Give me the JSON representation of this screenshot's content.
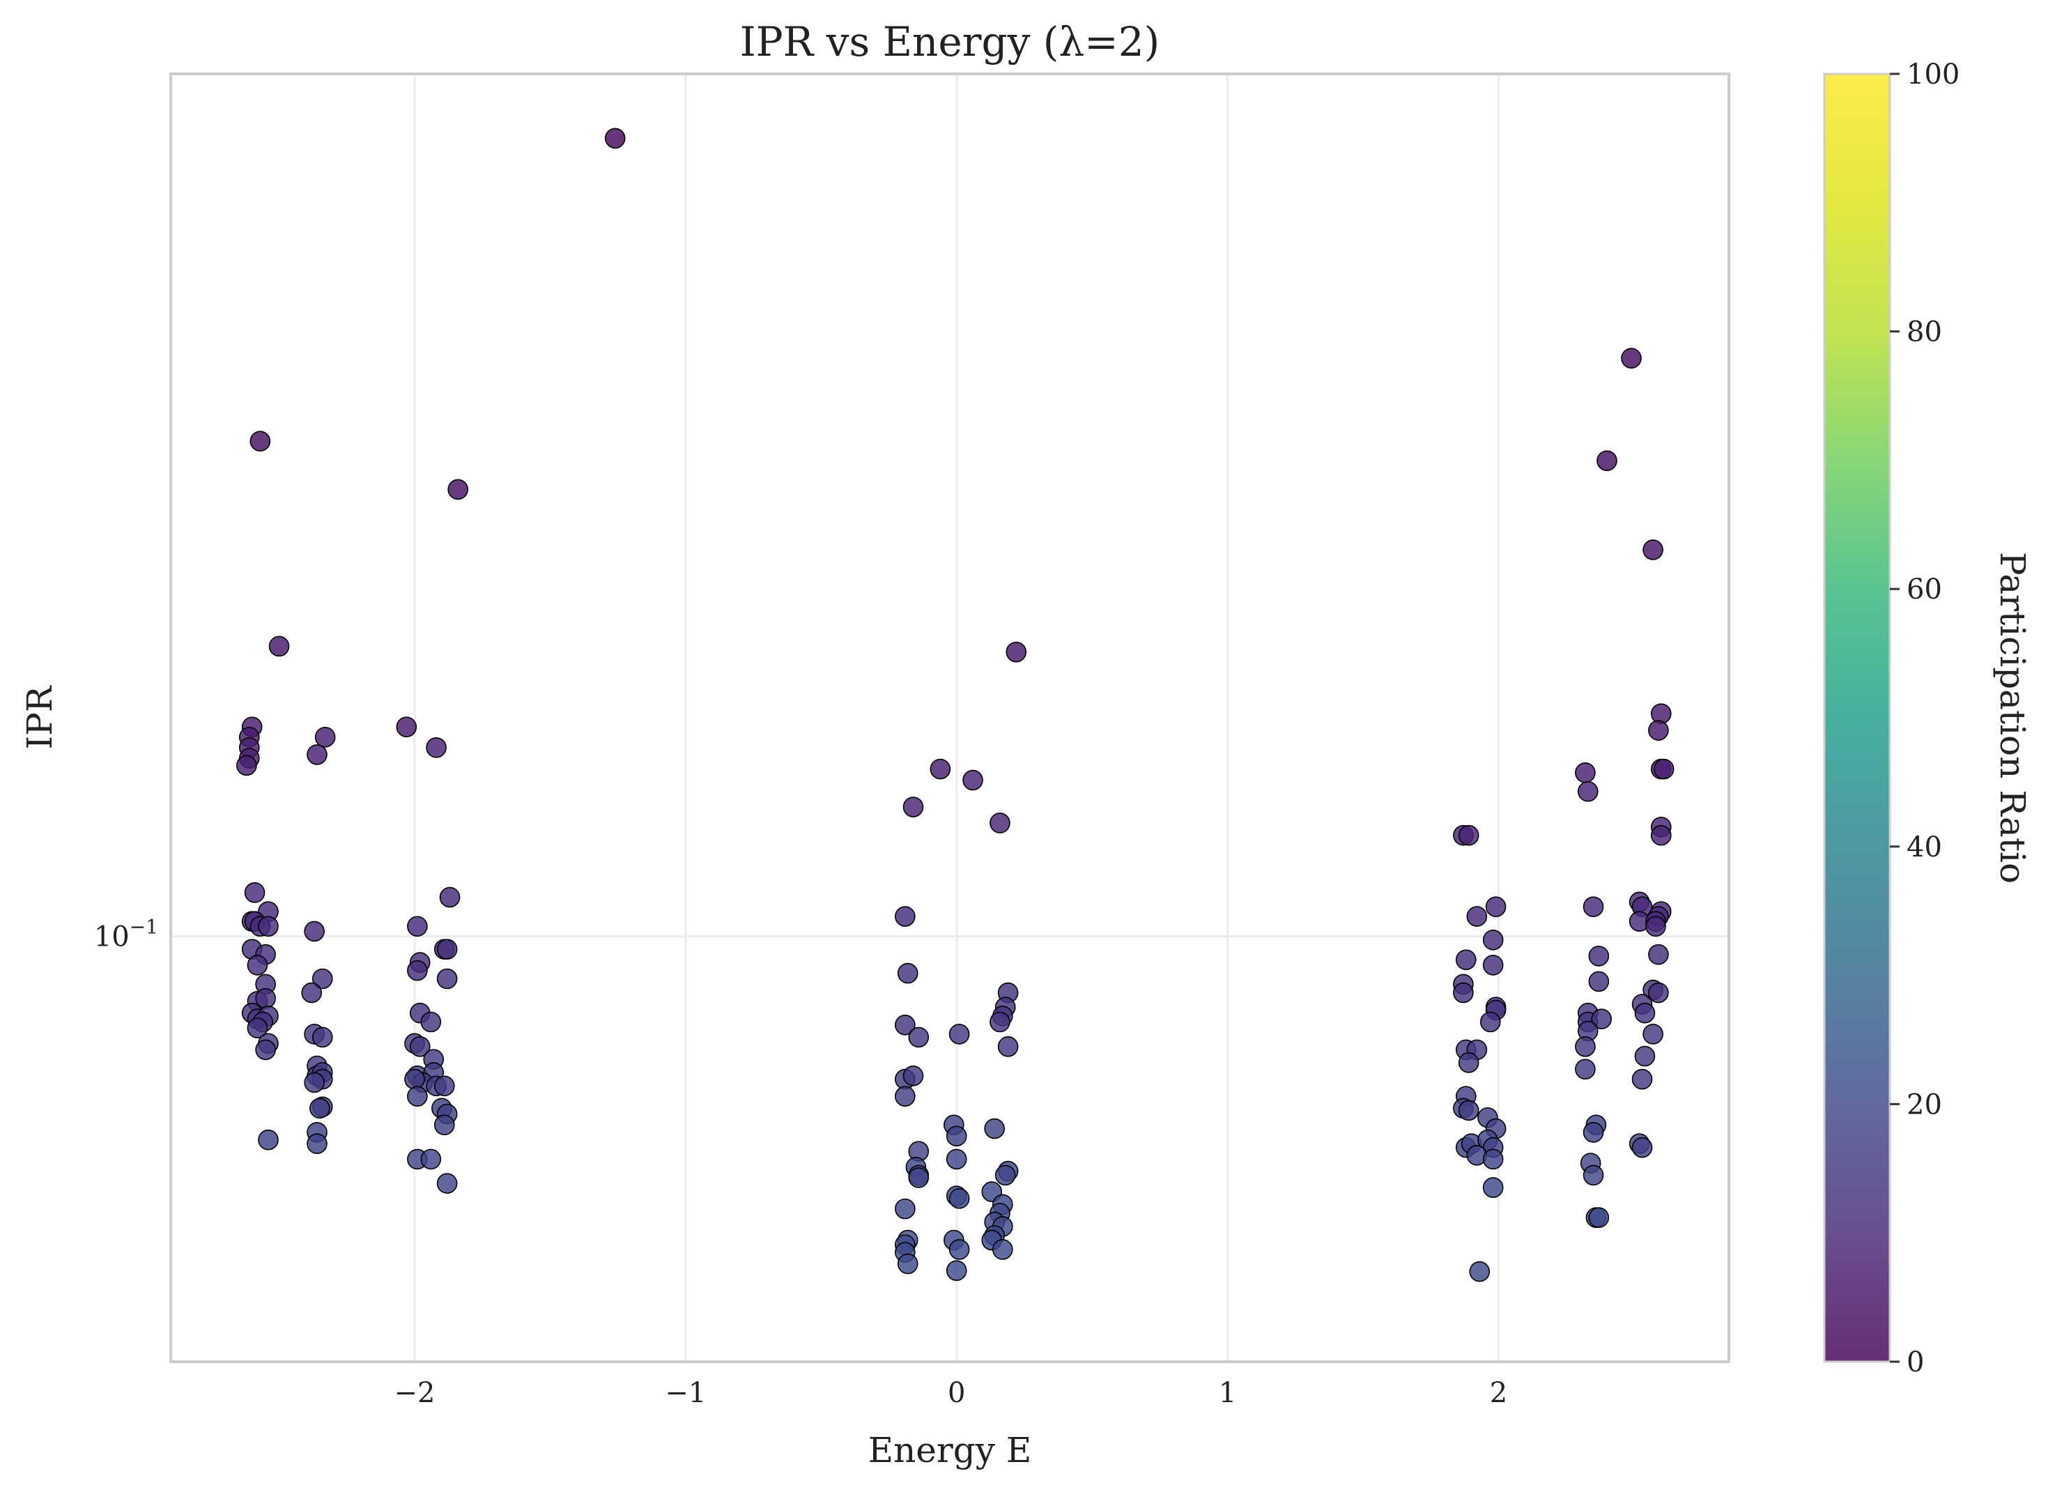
{
  "chart_data": {
    "type": "scatter",
    "title": "IPR vs Energy (λ=2)",
    "xlabel": "Energy E",
    "ylabel": "IPR",
    "xlim": [
      -2.9,
      2.85
    ],
    "ylim": [
      0.0433,
      0.546
    ],
    "yscale": "log",
    "x_ticks": [
      {
        "value": -2,
        "label": "−2"
      },
      {
        "value": -1,
        "label": "−1"
      },
      {
        "value": 0,
        "label": "0"
      },
      {
        "value": 1,
        "label": "1"
      },
      {
        "value": 2,
        "label": "2"
      }
    ],
    "y_ticks": [
      {
        "value": 0.1,
        "label": "10",
        "exponent": "−1"
      }
    ],
    "grid": true,
    "colorbar": {
      "label": "Participation Ratio",
      "colormap": "viridis",
      "range": [
        0,
        100
      ],
      "ticks": [
        {
          "value": 0,
          "label": "0"
        },
        {
          "value": 20,
          "label": "20"
        },
        {
          "value": 40,
          "label": "40"
        },
        {
          "value": 60,
          "label": "60"
        },
        {
          "value": 80,
          "label": "80"
        },
        {
          "value": 100,
          "label": "100"
        }
      ]
    },
    "points": [
      {
        "x": -1.26,
        "y": 0.481,
        "c": 2
      },
      {
        "x": 2.49,
        "y": 0.312,
        "c": 3
      },
      {
        "x": -2.57,
        "y": 0.265,
        "c": 4
      },
      {
        "x": 2.4,
        "y": 0.255,
        "c": 4
      },
      {
        "x": -1.84,
        "y": 0.241,
        "c": 4
      },
      {
        "x": 2.57,
        "y": 0.214,
        "c": 5
      },
      {
        "x": -2.5,
        "y": 0.177,
        "c": 6
      },
      {
        "x": 0.22,
        "y": 0.175,
        "c": 6
      },
      {
        "x": 2.6,
        "y": 0.155,
        "c": 7
      },
      {
        "x": -2.6,
        "y": 0.151,
        "c": 7
      },
      {
        "x": -2.61,
        "y": 0.148,
        "c": 7
      },
      {
        "x": -2.03,
        "y": 0.151,
        "c": 7
      },
      {
        "x": 2.59,
        "y": 0.15,
        "c": 7
      },
      {
        "x": -2.33,
        "y": 0.148,
        "c": 8
      },
      {
        "x": -2.61,
        "y": 0.145,
        "c": 8
      },
      {
        "x": -1.92,
        "y": 0.145,
        "c": 8
      },
      {
        "x": -2.36,
        "y": 0.143,
        "c": 8
      },
      {
        "x": -2.61,
        "y": 0.142,
        "c": 8
      },
      {
        "x": -2.62,
        "y": 0.14,
        "c": 8
      },
      {
        "x": -0.06,
        "y": 0.139,
        "c": 8
      },
      {
        "x": 2.6,
        "y": 0.139,
        "c": 8
      },
      {
        "x": 2.61,
        "y": 0.139,
        "c": 8
      },
      {
        "x": 2.32,
        "y": 0.138,
        "c": 8
      },
      {
        "x": 0.06,
        "y": 0.136,
        "c": 9
      },
      {
        "x": 2.33,
        "y": 0.133,
        "c": 9
      },
      {
        "x": -0.16,
        "y": 0.129,
        "c": 9
      },
      {
        "x": 0.16,
        "y": 0.125,
        "c": 9
      },
      {
        "x": 2.6,
        "y": 0.124,
        "c": 9
      },
      {
        "x": 1.87,
        "y": 0.122,
        "c": 9
      },
      {
        "x": 1.89,
        "y": 0.122,
        "c": 9
      },
      {
        "x": 2.6,
        "y": 0.122,
        "c": 9
      },
      {
        "x": -2.59,
        "y": 0.109,
        "c": 11
      },
      {
        "x": -1.87,
        "y": 0.108,
        "c": 11
      },
      {
        "x": 2.52,
        "y": 0.107,
        "c": 11
      },
      {
        "x": 2.53,
        "y": 0.106,
        "c": 11
      },
      {
        "x": 1.99,
        "y": 0.106,
        "c": 11
      },
      {
        "x": 2.35,
        "y": 0.106,
        "c": 11
      },
      {
        "x": -2.54,
        "y": 0.105,
        "c": 11
      },
      {
        "x": 2.6,
        "y": 0.105,
        "c": 11
      },
      {
        "x": -0.19,
        "y": 0.104,
        "c": 11
      },
      {
        "x": 1.92,
        "y": 0.104,
        "c": 11
      },
      {
        "x": 2.59,
        "y": 0.104,
        "c": 11
      },
      {
        "x": -2.6,
        "y": 0.103,
        "c": 11
      },
      {
        "x": -2.59,
        "y": 0.103,
        "c": 11
      },
      {
        "x": 2.52,
        "y": 0.103,
        "c": 11
      },
      {
        "x": 2.58,
        "y": 0.103,
        "c": 11
      },
      {
        "x": 2.58,
        "y": 0.102,
        "c": 11
      },
      {
        "x": -1.99,
        "y": 0.102,
        "c": 11
      },
      {
        "x": -2.57,
        "y": 0.102,
        "c": 11
      },
      {
        "x": -2.54,
        "y": 0.102,
        "c": 11
      },
      {
        "x": -2.37,
        "y": 0.101,
        "c": 11
      },
      {
        "x": 1.98,
        "y": 0.0993,
        "c": 12
      },
      {
        "x": -2.6,
        "y": 0.0975,
        "c": 12
      },
      {
        "x": -1.89,
        "y": 0.0975,
        "c": 12
      },
      {
        "x": -1.88,
        "y": 0.0975,
        "c": 12
      },
      {
        "x": -2.55,
        "y": 0.0965,
        "c": 12
      },
      {
        "x": 2.59,
        "y": 0.0965,
        "c": 12
      },
      {
        "x": 2.37,
        "y": 0.0962,
        "c": 12
      },
      {
        "x": 1.88,
        "y": 0.0955,
        "c": 12
      },
      {
        "x": -1.98,
        "y": 0.095,
        "c": 12
      },
      {
        "x": -2.58,
        "y": 0.0945,
        "c": 12
      },
      {
        "x": -1.99,
        "y": 0.0935,
        "c": 12
      },
      {
        "x": 1.98,
        "y": 0.0945,
        "c": 12
      },
      {
        "x": -0.18,
        "y": 0.093,
        "c": 13
      },
      {
        "x": -2.34,
        "y": 0.092,
        "c": 13
      },
      {
        "x": -2.55,
        "y": 0.091,
        "c": 13
      },
      {
        "x": -1.88,
        "y": 0.092,
        "c": 13
      },
      {
        "x": 1.87,
        "y": 0.091,
        "c": 13
      },
      {
        "x": 2.37,
        "y": 0.0915,
        "c": 13
      },
      {
        "x": -2.38,
        "y": 0.0895,
        "c": 13
      },
      {
        "x": 0.19,
        "y": 0.0895,
        "c": 13
      },
      {
        "x": 1.87,
        "y": 0.0895,
        "c": 13
      },
      {
        "x": 2.57,
        "y": 0.09,
        "c": 13
      },
      {
        "x": 2.59,
        "y": 0.0895,
        "c": 13
      },
      {
        "x": -2.58,
        "y": 0.088,
        "c": 13
      },
      {
        "x": -2.55,
        "y": 0.0885,
        "c": 13
      },
      {
        "x": 0.18,
        "y": 0.087,
        "c": 13
      },
      {
        "x": 1.99,
        "y": 0.087,
        "c": 13
      },
      {
        "x": 2.53,
        "y": 0.0875,
        "c": 13
      },
      {
        "x": -2.6,
        "y": 0.086,
        "c": 14
      },
      {
        "x": -1.98,
        "y": 0.086,
        "c": 14
      },
      {
        "x": 0.17,
        "y": 0.0855,
        "c": 14
      },
      {
        "x": 1.99,
        "y": 0.0865,
        "c": 14
      },
      {
        "x": 2.33,
        "y": 0.086,
        "c": 14
      },
      {
        "x": 2.54,
        "y": 0.086,
        "c": 14
      },
      {
        "x": -2.58,
        "y": 0.085,
        "c": 14
      },
      {
        "x": -2.54,
        "y": 0.0855,
        "c": 14
      },
      {
        "x": -2.56,
        "y": 0.0845,
        "c": 14
      },
      {
        "x": -1.94,
        "y": 0.0845,
        "c": 14
      },
      {
        "x": 0.16,
        "y": 0.0845,
        "c": 14
      },
      {
        "x": 1.97,
        "y": 0.0845,
        "c": 14
      },
      {
        "x": 2.33,
        "y": 0.0845,
        "c": 14
      },
      {
        "x": 2.38,
        "y": 0.085,
        "c": 14
      },
      {
        "x": -0.19,
        "y": 0.084,
        "c": 14
      },
      {
        "x": -2.58,
        "y": 0.0835,
        "c": 14
      },
      {
        "x": 0.01,
        "y": 0.0825,
        "c": 15
      },
      {
        "x": -0.14,
        "y": 0.082,
        "c": 15
      },
      {
        "x": -2.37,
        "y": 0.0825,
        "c": 15
      },
      {
        "x": -2.34,
        "y": 0.082,
        "c": 15
      },
      {
        "x": 2.33,
        "y": 0.083,
        "c": 15
      },
      {
        "x": 2.57,
        "y": 0.0825,
        "c": 15
      },
      {
        "x": -2.0,
        "y": 0.081,
        "c": 15
      },
      {
        "x": -1.98,
        "y": 0.0805,
        "c": 15
      },
      {
        "x": -2.54,
        "y": 0.081,
        "c": 15
      },
      {
        "x": -2.55,
        "y": 0.08,
        "c": 15
      },
      {
        "x": 0.19,
        "y": 0.0805,
        "c": 15
      },
      {
        "x": 1.88,
        "y": 0.08,
        "c": 15
      },
      {
        "x": 1.92,
        "y": 0.08,
        "c": 15
      },
      {
        "x": 2.32,
        "y": 0.0805,
        "c": 15
      },
      {
        "x": 2.54,
        "y": 0.079,
        "c": 15
      },
      {
        "x": -1.93,
        "y": 0.0785,
        "c": 16
      },
      {
        "x": -2.36,
        "y": 0.0775,
        "c": 16
      },
      {
        "x": 1.89,
        "y": 0.078,
        "c": 16
      },
      {
        "x": 2.32,
        "y": 0.077,
        "c": 16
      },
      {
        "x": -2.36,
        "y": 0.076,
        "c": 16
      },
      {
        "x": -2.34,
        "y": 0.0765,
        "c": 16
      },
      {
        "x": -1.99,
        "y": 0.076,
        "c": 16
      },
      {
        "x": -1.93,
        "y": 0.0765,
        "c": 16
      },
      {
        "x": -2.34,
        "y": 0.0755,
        "c": 16
      },
      {
        "x": -2.37,
        "y": 0.075,
        "c": 16
      },
      {
        "x": -1.97,
        "y": 0.075,
        "c": 16
      },
      {
        "x": -1.92,
        "y": 0.0745,
        "c": 16
      },
      {
        "x": -1.89,
        "y": 0.0745,
        "c": 16
      },
      {
        "x": -2.0,
        "y": 0.0755,
        "c": 16
      },
      {
        "x": -0.19,
        "y": 0.0755,
        "c": 16
      },
      {
        "x": -0.16,
        "y": 0.076,
        "c": 16
      },
      {
        "x": 2.53,
        "y": 0.0755,
        "c": 16
      },
      {
        "x": -1.99,
        "y": 0.073,
        "c": 17
      },
      {
        "x": 1.88,
        "y": 0.073,
        "c": 17
      },
      {
        "x": -0.19,
        "y": 0.073,
        "c": 17
      },
      {
        "x": -2.34,
        "y": 0.0715,
        "c": 17
      },
      {
        "x": -2.35,
        "y": 0.0713,
        "c": 17
      },
      {
        "x": -1.9,
        "y": 0.0713,
        "c": 17
      },
      {
        "x": -1.88,
        "y": 0.0705,
        "c": 17
      },
      {
        "x": 1.87,
        "y": 0.0713,
        "c": 17
      },
      {
        "x": 1.89,
        "y": 0.071,
        "c": 17
      },
      {
        "x": 1.96,
        "y": 0.07,
        "c": 17
      },
      {
        "x": -0.01,
        "y": 0.069,
        "c": 18
      },
      {
        "x": 0.14,
        "y": 0.0685,
        "c": 18
      },
      {
        "x": -2.36,
        "y": 0.068,
        "c": 18
      },
      {
        "x": -1.89,
        "y": 0.069,
        "c": 18
      },
      {
        "x": 0.0,
        "y": 0.0675,
        "c": 18
      },
      {
        "x": 1.99,
        "y": 0.0685,
        "c": 18
      },
      {
        "x": 2.36,
        "y": 0.069,
        "c": 18
      },
      {
        "x": 2.35,
        "y": 0.068,
        "c": 18
      },
      {
        "x": -2.54,
        "y": 0.067,
        "c": 18
      },
      {
        "x": -2.36,
        "y": 0.0665,
        "c": 18
      },
      {
        "x": 1.88,
        "y": 0.066,
        "c": 18
      },
      {
        "x": 1.9,
        "y": 0.0665,
        "c": 18
      },
      {
        "x": 1.96,
        "y": 0.067,
        "c": 18
      },
      {
        "x": 1.98,
        "y": 0.066,
        "c": 18
      },
      {
        "x": 2.52,
        "y": 0.0665,
        "c": 18
      },
      {
        "x": 2.53,
        "y": 0.066,
        "c": 18
      },
      {
        "x": -0.14,
        "y": 0.0655,
        "c": 19
      },
      {
        "x": 0.0,
        "y": 0.0645,
        "c": 19
      },
      {
        "x": -1.99,
        "y": 0.0645,
        "c": 19
      },
      {
        "x": -1.94,
        "y": 0.0645,
        "c": 19
      },
      {
        "x": 1.92,
        "y": 0.065,
        "c": 19
      },
      {
        "x": 1.98,
        "y": 0.0645,
        "c": 19
      },
      {
        "x": -0.15,
        "y": 0.0635,
        "c": 19
      },
      {
        "x": 0.19,
        "y": 0.063,
        "c": 19
      },
      {
        "x": -0.14,
        "y": 0.0625,
        "c": 19
      },
      {
        "x": 0.18,
        "y": 0.0625,
        "c": 19
      },
      {
        "x": -0.14,
        "y": 0.0622,
        "c": 19
      },
      {
        "x": 2.34,
        "y": 0.064,
        "c": 19
      },
      {
        "x": 2.35,
        "y": 0.0625,
        "c": 19
      },
      {
        "x": -1.88,
        "y": 0.0615,
        "c": 19
      },
      {
        "x": 0.13,
        "y": 0.0605,
        "c": 20
      },
      {
        "x": 0.0,
        "y": 0.06,
        "c": 20
      },
      {
        "x": 0.01,
        "y": 0.0597,
        "c": 20
      },
      {
        "x": 1.98,
        "y": 0.061,
        "c": 20
      },
      {
        "x": 0.17,
        "y": 0.059,
        "c": 20
      },
      {
        "x": 0.16,
        "y": 0.058,
        "c": 20
      },
      {
        "x": -0.19,
        "y": 0.0585,
        "c": 20
      },
      {
        "x": 2.36,
        "y": 0.0575,
        "c": 20
      },
      {
        "x": 2.37,
        "y": 0.0575,
        "c": 20
      },
      {
        "x": 0.14,
        "y": 0.057,
        "c": 20
      },
      {
        "x": 0.17,
        "y": 0.0565,
        "c": 20
      },
      {
        "x": 0.14,
        "y": 0.0555,
        "c": 20
      },
      {
        "x": 0.13,
        "y": 0.055,
        "c": 20
      },
      {
        "x": -0.18,
        "y": 0.055,
        "c": 20
      },
      {
        "x": -0.01,
        "y": 0.055,
        "c": 20
      },
      {
        "x": 0.17,
        "y": 0.054,
        "c": 21
      },
      {
        "x": -0.19,
        "y": 0.0545,
        "c": 21
      },
      {
        "x": 0.01,
        "y": 0.054,
        "c": 21
      },
      {
        "x": -0.19,
        "y": 0.0537,
        "c": 21
      },
      {
        "x": -0.18,
        "y": 0.0525,
        "c": 21
      },
      {
        "x": 0.0,
        "y": 0.0518,
        "c": 21
      },
      {
        "x": 1.93,
        "y": 0.0517,
        "c": 21
      }
    ]
  }
}
